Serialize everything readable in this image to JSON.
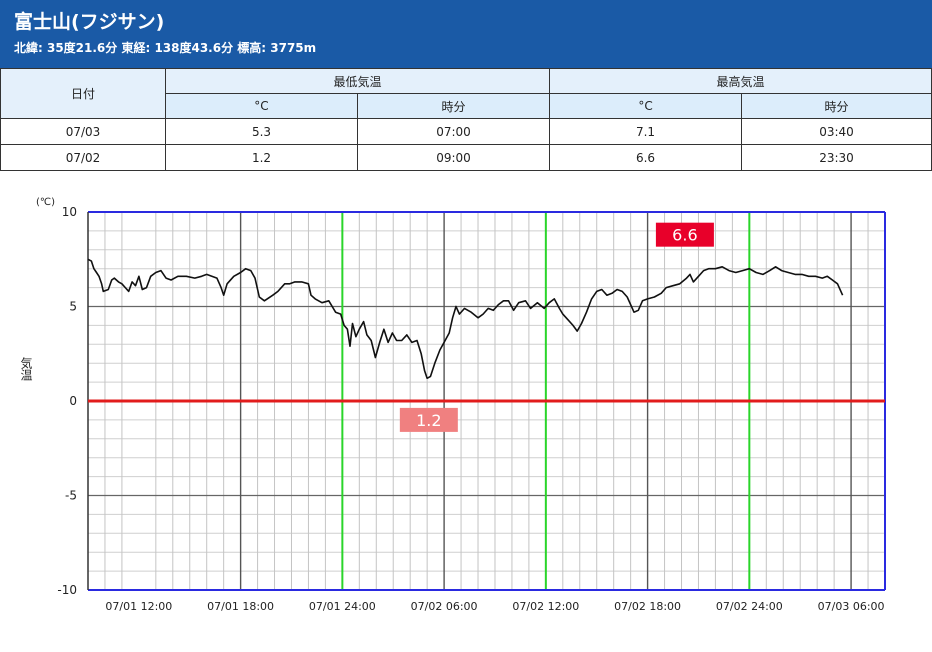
{
  "header": {
    "title": "富士山(フジサン)",
    "subtitle": "北緯: 35度21.6分 東経: 138度43.6分 標高: 3775m"
  },
  "table": {
    "col_date": "日付",
    "group_min": "最低気温",
    "group_max": "最高気温",
    "unit_c": "°C",
    "unit_time": "時分",
    "rows": [
      {
        "date": "07/03",
        "min_c": "5.3",
        "min_time": "07:00",
        "max_c": "7.1",
        "max_time": "03:40"
      },
      {
        "date": "07/02",
        "min_c": "1.2",
        "min_time": "09:00",
        "max_c": "6.6",
        "max_time": "23:30"
      }
    ]
  },
  "chart_data": {
    "type": "line",
    "ylabel": "気温",
    "yunit": "(℃)",
    "ylim": [
      -10,
      10
    ],
    "yticks": [
      "10",
      "5",
      "0",
      "-5",
      "-10"
    ],
    "xlim": [
      "07/01 09:00",
      "07/03 08:00"
    ],
    "xticks": [
      "07/01 12:00",
      "07/01 18:00",
      "07/01 24:00",
      "07/02 06:00",
      "07/02 12:00",
      "07/02 18:00",
      "07/02 24:00",
      "07/03 06:00"
    ],
    "grid": true,
    "colors": {
      "line": "#111111",
      "zero": "#e21c1c",
      "day": "#2ad52a",
      "frame": "#2a2ae0",
      "max_label": "#e8002a",
      "min_label": "#f08080"
    },
    "annotations": {
      "max": {
        "label": "6.6",
        "value": 6.6
      },
      "min": {
        "label": "1.2",
        "value": 1.2
      }
    },
    "series": [
      {
        "values": [
          [
            0.0,
            7.5
          ],
          [
            0.2,
            7.4
          ],
          [
            0.35,
            7.0
          ],
          [
            0.5,
            6.8
          ],
          [
            0.65,
            6.6
          ],
          [
            0.8,
            6.2
          ],
          [
            0.9,
            5.8
          ],
          [
            1.2,
            5.9
          ],
          [
            1.4,
            6.4
          ],
          [
            1.55,
            6.5
          ],
          [
            1.8,
            6.3
          ],
          [
            2.0,
            6.2
          ],
          [
            2.2,
            6.0
          ],
          [
            2.4,
            5.8
          ],
          [
            2.6,
            6.3
          ],
          [
            2.8,
            6.1
          ],
          [
            3.0,
            6.6
          ],
          [
            3.2,
            5.9
          ],
          [
            3.45,
            6.0
          ],
          [
            3.7,
            6.6
          ],
          [
            4.0,
            6.8
          ],
          [
            4.3,
            6.9
          ],
          [
            4.6,
            6.5
          ],
          [
            4.9,
            6.4
          ],
          [
            5.3,
            6.6
          ],
          [
            5.8,
            6.6
          ],
          [
            6.3,
            6.5
          ],
          [
            6.7,
            6.6
          ],
          [
            7.0,
            6.7
          ],
          [
            7.3,
            6.6
          ],
          [
            7.6,
            6.5
          ],
          [
            7.85,
            6.0
          ],
          [
            8.0,
            5.6
          ],
          [
            8.2,
            6.2
          ],
          [
            8.6,
            6.6
          ],
          [
            9.0,
            6.8
          ],
          [
            9.3,
            7.0
          ],
          [
            9.6,
            6.9
          ],
          [
            9.85,
            6.5
          ],
          [
            10.1,
            5.5
          ],
          [
            10.4,
            5.3
          ],
          [
            10.9,
            5.6
          ],
          [
            11.2,
            5.8
          ],
          [
            11.6,
            6.2
          ],
          [
            11.9,
            6.2
          ],
          [
            12.2,
            6.3
          ],
          [
            12.6,
            6.3
          ],
          [
            13.0,
            6.2
          ],
          [
            13.15,
            5.6
          ],
          [
            13.4,
            5.4
          ],
          [
            13.8,
            5.2
          ],
          [
            14.2,
            5.3
          ],
          [
            14.4,
            5.0
          ],
          [
            14.6,
            4.7
          ],
          [
            14.9,
            4.6
          ],
          [
            15.1,
            4.0
          ],
          [
            15.3,
            3.8
          ],
          [
            15.45,
            2.9
          ],
          [
            15.6,
            4.1
          ],
          [
            15.8,
            3.4
          ],
          [
            16.0,
            3.8
          ],
          [
            16.25,
            4.2
          ],
          [
            16.45,
            3.5
          ],
          [
            16.7,
            3.2
          ],
          [
            16.95,
            2.3
          ],
          [
            17.2,
            3.1
          ],
          [
            17.45,
            3.8
          ],
          [
            17.7,
            3.1
          ],
          [
            17.95,
            3.6
          ],
          [
            18.2,
            3.2
          ],
          [
            18.5,
            3.2
          ],
          [
            18.8,
            3.5
          ],
          [
            19.1,
            3.1
          ],
          [
            19.4,
            3.2
          ],
          [
            19.65,
            2.5
          ],
          [
            19.85,
            1.6
          ],
          [
            20.0,
            1.2
          ],
          [
            20.2,
            1.3
          ],
          [
            20.45,
            2.0
          ],
          [
            20.75,
            2.7
          ],
          [
            21.0,
            3.1
          ],
          [
            21.3,
            3.6
          ],
          [
            21.5,
            4.4
          ],
          [
            21.7,
            5.0
          ],
          [
            21.9,
            4.6
          ],
          [
            22.2,
            4.9
          ],
          [
            22.6,
            4.7
          ],
          [
            23.0,
            4.4
          ],
          [
            23.3,
            4.6
          ],
          [
            23.6,
            4.9
          ],
          [
            23.9,
            4.8
          ],
          [
            24.2,
            5.1
          ],
          [
            24.5,
            5.3
          ],
          [
            24.8,
            5.3
          ],
          [
            25.1,
            4.8
          ],
          [
            25.4,
            5.2
          ],
          [
            25.8,
            5.3
          ],
          [
            26.1,
            4.9
          ],
          [
            26.5,
            5.2
          ],
          [
            26.9,
            4.9
          ],
          [
            27.2,
            5.2
          ],
          [
            27.5,
            5.4
          ],
          [
            27.8,
            4.9
          ],
          [
            28.0,
            4.6
          ],
          [
            28.3,
            4.3
          ],
          [
            28.6,
            4.0
          ],
          [
            28.85,
            3.7
          ],
          [
            29.1,
            4.1
          ],
          [
            29.4,
            4.7
          ],
          [
            29.7,
            5.4
          ],
          [
            30.0,
            5.8
          ],
          [
            30.3,
            5.9
          ],
          [
            30.6,
            5.6
          ],
          [
            30.9,
            5.7
          ],
          [
            31.2,
            5.9
          ],
          [
            31.5,
            5.8
          ],
          [
            31.8,
            5.5
          ],
          [
            32.0,
            5.1
          ],
          [
            32.2,
            4.7
          ],
          [
            32.45,
            4.8
          ],
          [
            32.7,
            5.3
          ],
          [
            33.0,
            5.4
          ],
          [
            33.4,
            5.5
          ],
          [
            33.8,
            5.7
          ],
          [
            34.1,
            6.0
          ],
          [
            34.5,
            6.1
          ],
          [
            34.9,
            6.2
          ],
          [
            35.3,
            6.5
          ],
          [
            35.5,
            6.7
          ],
          [
            35.7,
            6.3
          ],
          [
            36.0,
            6.6
          ],
          [
            36.3,
            6.9
          ],
          [
            36.6,
            7.0
          ],
          [
            37.0,
            7.0
          ],
          [
            37.4,
            7.1
          ],
          [
            37.8,
            6.9
          ],
          [
            38.2,
            6.8
          ],
          [
            38.6,
            6.9
          ],
          [
            39.0,
            7.0
          ],
          [
            39.4,
            6.8
          ],
          [
            39.8,
            6.7
          ],
          [
            40.2,
            6.9
          ],
          [
            40.55,
            7.1
          ],
          [
            40.9,
            6.9
          ],
          [
            41.3,
            6.8
          ],
          [
            41.7,
            6.7
          ],
          [
            42.1,
            6.7
          ],
          [
            42.5,
            6.6
          ],
          [
            42.9,
            6.6
          ],
          [
            43.3,
            6.5
          ],
          [
            43.6,
            6.6
          ],
          [
            43.9,
            6.4
          ],
          [
            44.2,
            6.2
          ],
          [
            44.5,
            5.6
          ]
        ]
      }
    ]
  }
}
